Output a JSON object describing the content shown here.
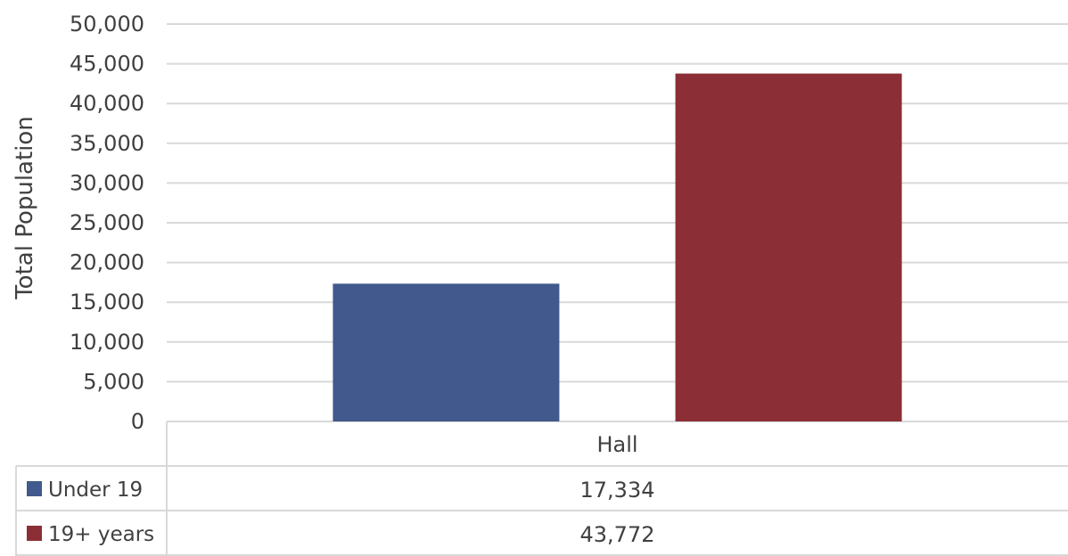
{
  "chart_data": {
    "type": "bar",
    "categories": [
      "Hall"
    ],
    "series": [
      {
        "name": "Under 19",
        "values": [
          17334
        ],
        "color": "#41598c",
        "label": "17,334"
      },
      {
        "name": "19+ years",
        "values": [
          43772
        ],
        "color": "#8b2e35",
        "label": "43,772"
      }
    ],
    "ylabel": "Total Population",
    "ylim": [
      0,
      50000
    ],
    "yticks": [
      0,
      5000,
      10000,
      15000,
      20000,
      25000,
      30000,
      35000,
      40000,
      45000,
      50000
    ],
    "ytick_labels": [
      "0",
      "5,000",
      "10,000",
      "15,000",
      "20,000",
      "25,000",
      "30,000",
      "35,000",
      "40,000",
      "45,000",
      "50,000"
    ],
    "grid": true,
    "legend": "data-table-left",
    "data_table": true
  }
}
